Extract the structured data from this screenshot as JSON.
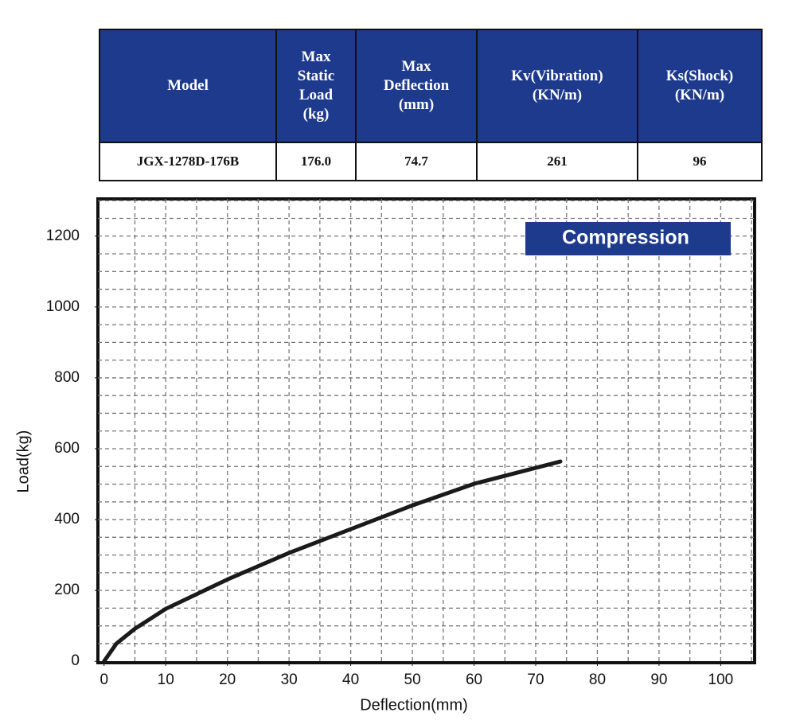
{
  "table": {
    "header": [
      "Model",
      "Max\nStatic\nLoad\n(kg)",
      "Max\nDeflection\n(mm)",
      "Kv(Vibration)\n(KN/m)",
      "Ks(Shock)\n(KN/m)"
    ],
    "rows": [
      [
        "JGX-1278D-176B",
        "176.0",
        "74.7",
        "261",
        "96"
      ]
    ]
  },
  "chart_data": {
    "type": "line",
    "annotation": "Compression",
    "x_label": "Deflection(mm)",
    "y_label": "Load(kg)",
    "x": [
      0,
      2,
      5,
      10,
      20,
      30,
      40,
      50,
      60,
      70,
      74
    ],
    "series": [
      {
        "name": "Compression",
        "color": "#1a1a1a",
        "values": [
          0,
          50,
          92,
          148,
          231,
          306,
          373,
          440,
          501,
          546,
          564
        ]
      }
    ],
    "xlim": [
      -1,
      105.5
    ],
    "ylim": [
      -4,
      1305
    ],
    "xticks": [
      0,
      10,
      20,
      30,
      40,
      50,
      60,
      70,
      80,
      90,
      100
    ],
    "yticks": [
      0,
      200,
      400,
      600,
      800,
      1000,
      1200
    ],
    "xgrid": [
      5,
      10,
      15,
      20,
      25,
      30,
      35,
      40,
      45,
      50,
      55,
      60,
      65,
      70,
      75,
      80,
      85,
      90,
      95,
      100,
      105
    ],
    "ygrid": [
      50,
      100,
      150,
      200,
      250,
      300,
      350,
      400,
      450,
      500,
      550,
      600,
      650,
      700,
      750,
      800,
      850,
      900,
      950,
      1000,
      1050,
      1100,
      1150,
      1200,
      1250,
      1300
    ],
    "grid": true
  }
}
